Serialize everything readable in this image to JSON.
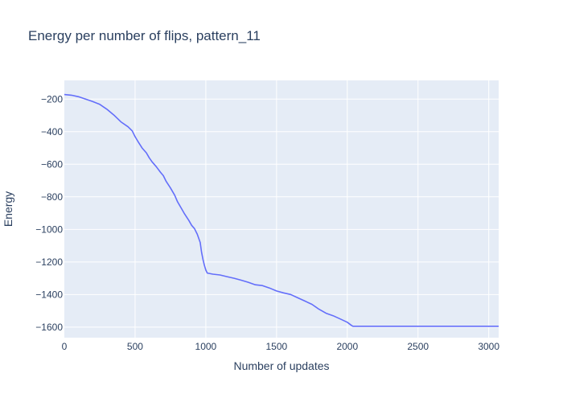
{
  "chart_data": {
    "type": "line",
    "title": "Energy per number of flips, pattern_11",
    "xlabel": "Number of updates",
    "ylabel": "Energy",
    "xlim": [
      0,
      3070
    ],
    "ylim": [
      -1665,
      -85
    ],
    "x_ticks": [
      0,
      500,
      1000,
      1500,
      2000,
      2500,
      3000
    ],
    "x_tick_labels": [
      "0",
      "500",
      "1000",
      "1500",
      "2000",
      "2500",
      "3000"
    ],
    "y_ticks": [
      -200,
      -400,
      -600,
      -800,
      -1000,
      -1200,
      -1400,
      -1600
    ],
    "y_tick_labels": [
      "−200",
      "−400",
      "−600",
      "−800",
      "−1000",
      "−1200",
      "−1400",
      "−1600"
    ],
    "grid": true,
    "colors": {
      "line": "#636efa",
      "plot_bg": "#e5ecf6",
      "grid": "#ffffff",
      "text": "#2a3f5f"
    },
    "series": [
      {
        "x": [
          0,
          50,
          100,
          150,
          200,
          250,
          300,
          350,
          400,
          450,
          480,
          500,
          520,
          550,
          580,
          600,
          620,
          650,
          680,
          700,
          720,
          750,
          780,
          800,
          830,
          850,
          880,
          900,
          920,
          940,
          960,
          970,
          980,
          990,
          1000,
          1010,
          1050,
          1100,
          1150,
          1200,
          1250,
          1300,
          1350,
          1400,
          1450,
          1500,
          1550,
          1600,
          1650,
          1700,
          1750,
          1800,
          1850,
          1900,
          1950,
          2000,
          2030,
          2040,
          2100,
          2500,
          3000,
          3070
        ],
        "y": [
          -172,
          -176,
          -185,
          -200,
          -215,
          -232,
          -262,
          -298,
          -340,
          -370,
          -395,
          -430,
          -460,
          -500,
          -530,
          -560,
          -585,
          -615,
          -650,
          -670,
          -705,
          -745,
          -790,
          -830,
          -875,
          -905,
          -945,
          -975,
          -995,
          -1030,
          -1080,
          -1140,
          -1185,
          -1220,
          -1250,
          -1268,
          -1275,
          -1280,
          -1290,
          -1300,
          -1312,
          -1325,
          -1340,
          -1345,
          -1360,
          -1378,
          -1390,
          -1400,
          -1420,
          -1440,
          -1460,
          -1490,
          -1515,
          -1530,
          -1550,
          -1570,
          -1590,
          -1595,
          -1595,
          -1595,
          -1595,
          -1595
        ]
      }
    ]
  }
}
